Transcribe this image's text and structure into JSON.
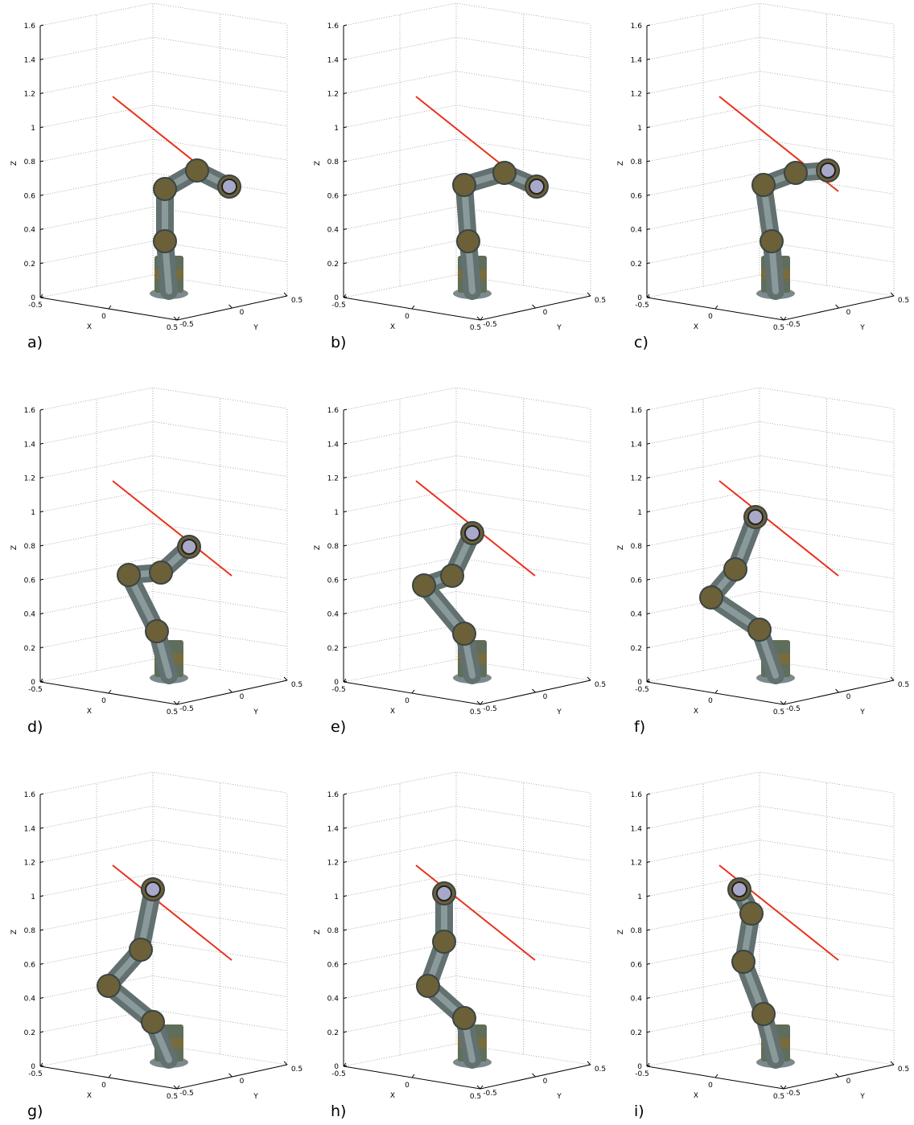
{
  "axes": {
    "z_label": "Z",
    "x_label": "X",
    "y_label": "Y",
    "z_ticks": [
      0,
      0.2,
      0.4,
      0.6,
      0.8,
      1,
      1.2,
      1.4,
      1.6
    ],
    "x_ticks": [
      -0.5,
      0,
      0.5
    ],
    "y_ticks": [
      -0.5,
      0,
      0.5
    ]
  },
  "panels": [
    {
      "label": "a)"
    },
    {
      "label": "b)"
    },
    {
      "label": "c)"
    },
    {
      "label": "d)"
    },
    {
      "label": "e)"
    },
    {
      "label": "f)"
    },
    {
      "label": "g)"
    },
    {
      "label": "h)"
    },
    {
      "label": "i)"
    }
  ]
}
